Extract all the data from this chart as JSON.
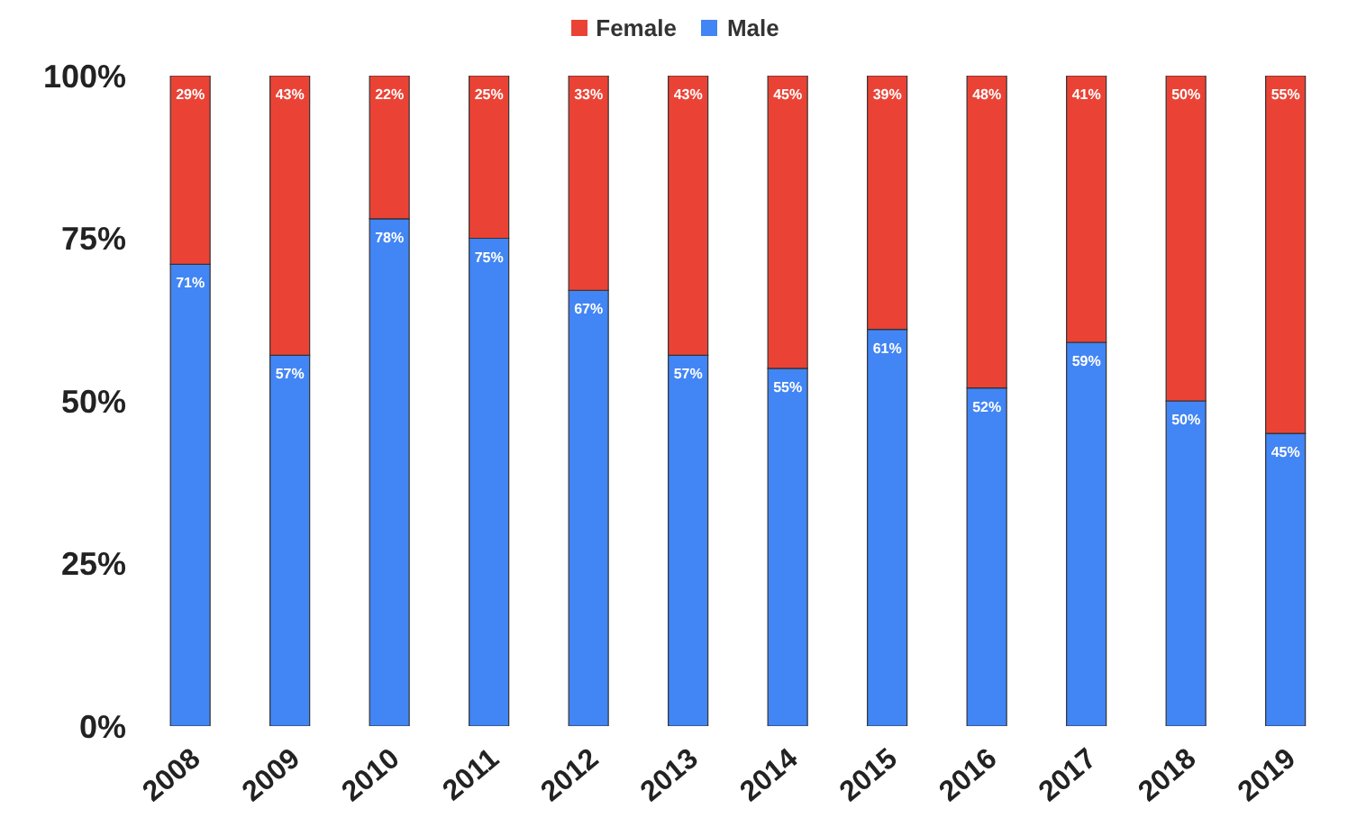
{
  "chart_data": {
    "type": "bar",
    "stacked": true,
    "categories": [
      "2008",
      "2009",
      "2010",
      "2011",
      "2012",
      "2013",
      "2014",
      "2015",
      "2016",
      "2017",
      "2018",
      "2019"
    ],
    "series": [
      {
        "name": "Male",
        "color": "#4285f4",
        "values": [
          71,
          57,
          78,
          75,
          67,
          57,
          55,
          61,
          52,
          59,
          50,
          45
        ],
        "value_labels": [
          "71%",
          "57%",
          "78%",
          "75%",
          "67%",
          "57%",
          "55%",
          "61%",
          "52%",
          "59%",
          "50%",
          "45%"
        ]
      },
      {
        "name": "Female",
        "color": "#ea4335",
        "values": [
          29,
          43,
          22,
          25,
          33,
          43,
          45,
          39,
          48,
          41,
          50,
          55
        ],
        "value_labels": [
          "29%",
          "43%",
          "22%",
          "25%",
          "33%",
          "43%",
          "45%",
          "39%",
          "48%",
          "41%",
          "50%",
          "55%"
        ]
      }
    ],
    "ylim": [
      0,
      100
    ],
    "yticks": [
      {
        "value": 0,
        "label": "0%"
      },
      {
        "value": 25,
        "label": "25%"
      },
      {
        "value": 50,
        "label": "50%"
      },
      {
        "value": 75,
        "label": "75%"
      },
      {
        "value": 100,
        "label": "100%"
      }
    ],
    "legend": "top",
    "grid": false
  }
}
